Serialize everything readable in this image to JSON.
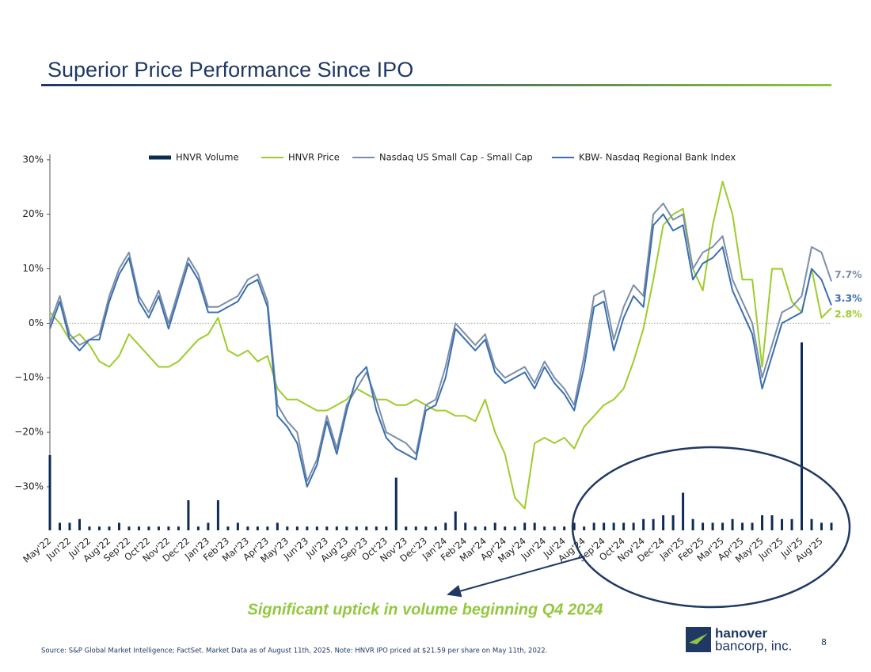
{
  "title": "Superior Price Performance Since IPO",
  "chart_data": {
    "type": "line",
    "categories": [
      "May'22",
      null,
      "Jun'22",
      null,
      "Jul'22",
      null,
      "Aug'22",
      null,
      "Sep'22",
      null,
      "Oct'22",
      null,
      "Nov'22",
      null,
      "Dec'22",
      null,
      "Jan'23",
      null,
      "Feb'23",
      null,
      "Mar'23",
      null,
      "Apr'23",
      null,
      "May'23",
      null,
      "Jun'23",
      null,
      "Jul'23",
      null,
      "Aug'23",
      null,
      "Sep'23",
      null,
      "Oct'23",
      null,
      "Nov'23",
      null,
      "Dec'23",
      null,
      "Jan'24",
      null,
      "Feb'24",
      null,
      "Mar'24",
      null,
      "Apr'24",
      null,
      "May'24",
      null,
      "Jun'24",
      null,
      "Jul'24",
      null,
      "Aug'24",
      null,
      "Sep'24",
      null,
      "Oct'24",
      null,
      "Nov'24",
      null,
      "Dec'24",
      null,
      "Jan'25",
      null,
      "Feb'25",
      null,
      "Mar'25",
      null,
      "Apr'25",
      null,
      "May'25",
      null,
      "Jun'25",
      null,
      "Jul'25",
      null,
      "Aug'25",
      null
    ],
    "series": [
      {
        "name": "HNVR Volume",
        "type": "bar",
        "axis": "y2",
        "color": "#0d2b55",
        "values": [
          20,
          2,
          2,
          3,
          1,
          1,
          1,
          2,
          1,
          1,
          1,
          1,
          1,
          1,
          8,
          1,
          2,
          8,
          1,
          2,
          1,
          1,
          1,
          2,
          1,
          1,
          1,
          1,
          1,
          1,
          1,
          1,
          1,
          1,
          1,
          14,
          1,
          1,
          1,
          1,
          2,
          5,
          2,
          1,
          1,
          2,
          1,
          1,
          2,
          2,
          1,
          1,
          1,
          2,
          1,
          2,
          2,
          2,
          2,
          2,
          3,
          3,
          4,
          4,
          10,
          3,
          2,
          2,
          2,
          3,
          2,
          2,
          4,
          4,
          3,
          3,
          50,
          3,
          2,
          2
        ]
      },
      {
        "name": "HNVR Price",
        "color": "#9ccd2b",
        "values": [
          2,
          0,
          -3,
          -2,
          -4,
          -7,
          -8,
          -6,
          -2,
          -4,
          -6,
          -8,
          -8,
          -7,
          -5,
          -3,
          -2,
          1,
          -5,
          -6,
          -5,
          -7,
          -6,
          -12,
          -14,
          -14,
          -15,
          -16,
          -16,
          -15,
          -14,
          -12,
          -13,
          -14,
          -14,
          -15,
          -15,
          -14,
          -15,
          -16,
          -16,
          -17,
          -17,
          -18,
          -14,
          -20,
          -24,
          -32,
          -34,
          -22,
          -21,
          -22,
          -21,
          -23,
          -19,
          -17,
          -15,
          -14,
          -12,
          -7,
          -1,
          8,
          18,
          20,
          21,
          10,
          6,
          18,
          26,
          20,
          8,
          8,
          -8,
          10,
          10,
          4,
          2,
          10,
          1,
          2.8
        ],
        "value_labels": [
          null,
          null,
          null,
          null,
          null,
          null,
          null,
          null,
          null,
          null,
          null,
          null,
          null,
          null,
          null,
          null,
          null,
          null,
          null,
          null,
          null,
          null,
          null,
          null,
          null,
          null,
          null,
          null,
          null,
          null,
          null,
          null,
          null,
          null,
          null,
          null,
          null,
          null,
          null,
          null,
          null,
          null,
          null,
          null,
          null,
          null,
          null,
          null,
          null,
          null,
          null,
          null,
          null,
          null,
          null,
          null,
          null,
          null,
          null,
          null,
          null,
          null,
          null,
          null,
          null,
          null,
          null,
          null,
          null,
          null,
          null,
          null,
          null,
          null,
          null,
          null,
          null,
          null,
          null,
          "2.8%"
        ]
      },
      {
        "name": "Nasdaq US Small Cap - Small Cap",
        "color": "#7b8ea8",
        "values": [
          0,
          5,
          -2,
          -4,
          -3,
          -2,
          5,
          10,
          13,
          5,
          2,
          6,
          0,
          6,
          12,
          9,
          3,
          3,
          4,
          5,
          8,
          9,
          4,
          -15,
          -18,
          -20,
          -29,
          -25,
          -17,
          -23,
          -15,
          -12,
          -9,
          -14,
          -20,
          -21,
          -22,
          -24,
          -15,
          -14,
          -8,
          0,
          -2,
          -4,
          -2,
          -8,
          -10,
          -9,
          -8,
          -11,
          -7,
          -10,
          -12,
          -15,
          -6,
          5,
          6,
          -3,
          3,
          7,
          5,
          20,
          22,
          19,
          20,
          10,
          13,
          14,
          16,
          8,
          4,
          0,
          -10,
          -4,
          2,
          3,
          5,
          14,
          13,
          7.7
        ],
        "value_labels": [
          null,
          null,
          null,
          null,
          null,
          null,
          null,
          null,
          null,
          null,
          null,
          null,
          null,
          null,
          null,
          null,
          null,
          null,
          null,
          null,
          null,
          null,
          null,
          null,
          null,
          null,
          null,
          null,
          null,
          null,
          null,
          null,
          null,
          null,
          null,
          null,
          null,
          null,
          null,
          null,
          null,
          null,
          null,
          null,
          null,
          null,
          null,
          null,
          null,
          null,
          null,
          null,
          null,
          null,
          null,
          null,
          null,
          null,
          null,
          null,
          null,
          null,
          null,
          null,
          null,
          null,
          null,
          null,
          null,
          null,
          null,
          null,
          null,
          null,
          null,
          null,
          null,
          null,
          null,
          "7.7%"
        ]
      },
      {
        "name": "KBW- Nasdaq Regional Bank Index",
        "color": "#3a6fb0",
        "values": [
          -1,
          4,
          -3,
          -5,
          -3,
          -3,
          4,
          9,
          12,
          4,
          1,
          5,
          -1,
          5,
          11,
          8,
          2,
          2,
          3,
          4,
          7,
          8,
          3,
          -17,
          -19,
          -22,
          -30,
          -26,
          -18,
          -24,
          -16,
          -10,
          -8,
          -16,
          -21,
          -23,
          -24,
          -25,
          -16,
          -15,
          -10,
          -1,
          -3,
          -5,
          -3,
          -9,
          -11,
          -10,
          -9,
          -12,
          -8,
          -11,
          -13,
          -16,
          -8,
          3,
          4,
          -5,
          1,
          5,
          3,
          18,
          20,
          17,
          18,
          8,
          11,
          12,
          14,
          6,
          2,
          -2,
          -12,
          -6,
          0,
          1,
          2,
          10,
          8,
          3.3
        ],
        "value_labels": [
          null,
          null,
          null,
          null,
          null,
          null,
          null,
          null,
          null,
          null,
          null,
          null,
          null,
          null,
          null,
          null,
          null,
          null,
          null,
          null,
          null,
          null,
          null,
          null,
          null,
          null,
          null,
          null,
          null,
          null,
          null,
          null,
          null,
          null,
          null,
          null,
          null,
          null,
          null,
          null,
          null,
          null,
          null,
          null,
          null,
          null,
          null,
          null,
          null,
          null,
          null,
          null,
          null,
          null,
          null,
          null,
          null,
          null,
          null,
          null,
          null,
          null,
          null,
          null,
          null,
          null,
          null,
          null,
          null,
          null,
          null,
          null,
          null,
          null,
          null,
          null,
          null,
          null,
          null,
          "3.3%"
        ]
      }
    ],
    "ylim": [
      -38,
      31
    ],
    "yticks": [
      {
        "value": 30,
        "label": "30%"
      },
      {
        "value": 20,
        "label": "20%"
      },
      {
        "value": 10,
        "label": "10%"
      },
      {
        "value": 0,
        "label": "0%"
      },
      {
        "value": -10,
        "label": "−10%"
      },
      {
        "value": -20,
        "label": "−20%"
      },
      {
        "value": -30,
        "label": "−30%"
      }
    ],
    "y2lim": [
      0,
      100
    ],
    "zero_line": true,
    "legend": "top",
    "annotation": "Significant uptick in volume beginning Q4 2024"
  },
  "source": "Source: S&P Global Market Intelligence; FactSet. Market Data as of August 11th, 2025. Note: HNVR IPO priced at $21.59 per share on May 11th, 2022.",
  "logo": {
    "line1": "hanover",
    "line2": "bancorp, inc."
  },
  "page_number": "8"
}
